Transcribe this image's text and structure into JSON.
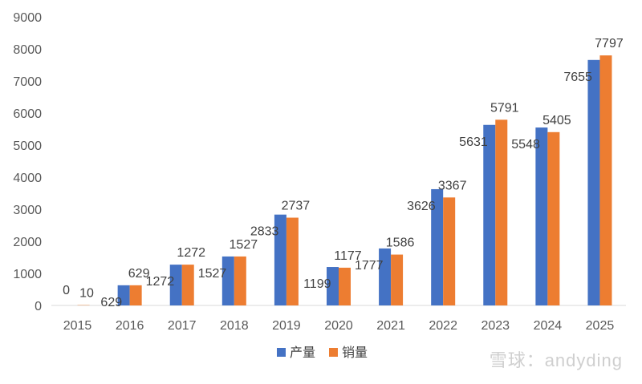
{
  "chart_data": {
    "type": "bar",
    "title": "",
    "xlabel": "",
    "ylabel": "",
    "categories": [
      "2015",
      "2016",
      "2017",
      "2018",
      "2019",
      "2020",
      "2021",
      "2022",
      "2023",
      "2024",
      "2025"
    ],
    "series": [
      {
        "name": "产量",
        "color": "#4472C4",
        "values": [
          0,
          629,
          1272,
          1527,
          2833,
          1199,
          1777,
          3626,
          5631,
          5548,
          7655
        ]
      },
      {
        "name": "销量",
        "color": "#ED7D31",
        "values": [
          10,
          629,
          1272,
          1527,
          2737,
          1177,
          1586,
          3367,
          5791,
          5405,
          7797
        ]
      }
    ],
    "ylim": [
      0,
      9000
    ],
    "yticks": [
      0,
      1000,
      2000,
      3000,
      4000,
      5000,
      6000,
      7000,
      8000,
      9000
    ],
    "grid": false,
    "legend": "bottom-center",
    "data_labels": true
  },
  "watermark": {
    "text": "雪球：andyding"
  }
}
